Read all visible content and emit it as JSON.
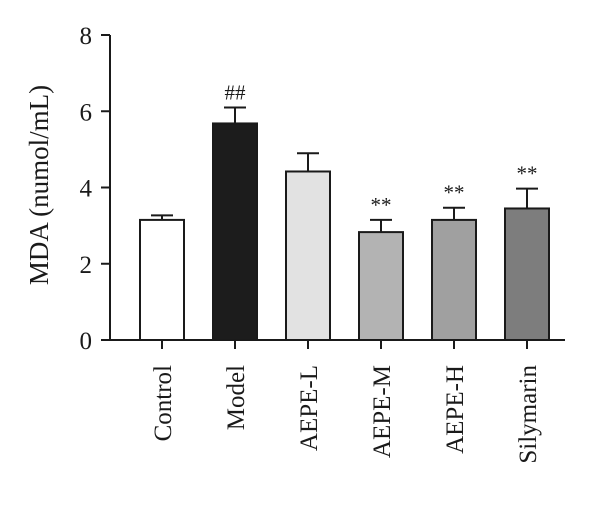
{
  "chart_data": {
    "type": "bar",
    "title": "",
    "xlabel": "",
    "ylabel": "MDA (numol/mL)",
    "ylim": [
      0,
      8
    ],
    "yticks": [
      0,
      2,
      4,
      6,
      8
    ],
    "grid": false,
    "legend": "none",
    "categories": [
      "Control",
      "Model",
      "AEPE-L",
      "AEPE-M",
      "AEPE-H",
      "Silymarin"
    ],
    "values": [
      3.15,
      5.68,
      4.42,
      2.83,
      3.15,
      3.45
    ],
    "errors": [
      0.12,
      0.42,
      0.48,
      0.32,
      0.32,
      0.52
    ],
    "annotations": [
      "",
      "##",
      "",
      "**",
      "**",
      "**"
    ],
    "bar_colors": [
      "#ffffff",
      "#1c1c1c",
      "#e2e2e2",
      "#b3b3b3",
      "#a0a0a0",
      "#7d7d7d"
    ]
  }
}
